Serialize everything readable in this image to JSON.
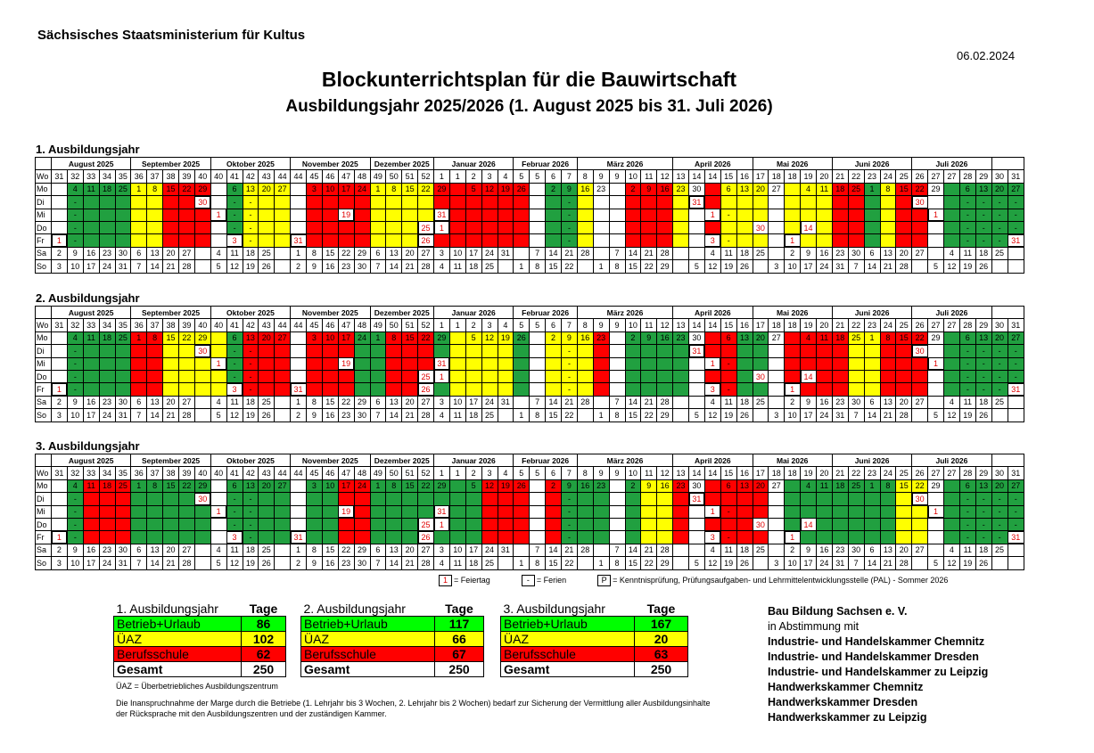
{
  "header": {
    "organization": "Sächsisches Staatsministerium für Kultus",
    "date": "06.02.2024",
    "title": "Blockunterrichtsplan für die Bauwirtschaft",
    "subtitle": "Ausbildungsjahr 2025/2026 (1. August 2025 bis 31. Juli 2026)"
  },
  "colors": {
    "betrieb": "#21a040",
    "uaz": "#ffff00",
    "schule": "#ff0000",
    "feiertag_text": "#e00000"
  },
  "calendar": {
    "row_labels": [
      "Wo",
      "Mo",
      "Di",
      "Mi",
      "Do",
      "Fr",
      "Sa",
      "So"
    ],
    "months": [
      {
        "name": "August 2025",
        "span": 5
      },
      {
        "name": "September 2025",
        "span": 5
      },
      {
        "name": "Oktober 2025",
        "span": 5
      },
      {
        "name": "November 2025",
        "span": 5
      },
      {
        "name": "Dezember 2025",
        "span": 4
      },
      {
        "name": "Januar 2026",
        "span": 5
      },
      {
        "name": "Februar 2026",
        "span": 4
      },
      {
        "name": "März 2026",
        "span": 6
      },
      {
        "name": "April 2026",
        "span": 5
      },
      {
        "name": "Mai 2026",
        "span": 5
      },
      {
        "name": "Juni 2026",
        "span": 5
      },
      {
        "name": "Juli 2026",
        "span": 5
      }
    ],
    "weeks": [
      "31",
      "32",
      "33",
      "34",
      "35",
      "36",
      "37",
      "38",
      "39",
      "40",
      "40",
      "41",
      "42",
      "43",
      "44",
      "44",
      "45",
      "46",
      "47",
      "48",
      "49",
      "50",
      "51",
      "52",
      "1",
      "1",
      "2",
      "3",
      "4",
      "5",
      "5",
      "6",
      "7",
      "8",
      "9",
      "9",
      "10",
      "11",
      "12",
      "13",
      "14",
      "14",
      "15",
      "16",
      "17",
      "18",
      "18",
      "19",
      "20",
      "21",
      "22",
      "23",
      "24",
      "25",
      "26",
      "27",
      "27",
      "28",
      "29",
      "30",
      "31"
    ],
    "mo": [
      "",
      "4",
      "11",
      "18",
      "25",
      "1",
      "8",
      "15",
      "22",
      "29",
      "",
      "6",
      "13",
      "20",
      "27",
      "",
      "3",
      "10",
      "17",
      "24",
      "1",
      "8",
      "15",
      "22",
      "29",
      "",
      "5",
      "12",
      "19",
      "26",
      "",
      "2",
      "9",
      "16",
      "23",
      "",
      "2",
      "9",
      "16",
      "23",
      "30",
      "",
      "6",
      "13",
      "20",
      "27",
      "",
      "4",
      "11",
      "18",
      "25",
      "1",
      "8",
      "15",
      "22",
      "29",
      "",
      "6",
      "13",
      "20",
      "27"
    ],
    "di": [
      "",
      "-",
      "",
      "",
      "",
      "",
      "",
      "",
      "",
      "30",
      "",
      "-",
      "-",
      "",
      "",
      "",
      "",
      "",
      "",
      "",
      "",
      "",
      "",
      "",
      "",
      "",
      "",
      "",
      "",
      "",
      "",
      "",
      "-",
      "",
      "",
      "",
      "",
      "",
      "",
      "",
      "31",
      "",
      "",
      "",
      "",
      "",
      "",
      "",
      "",
      "",
      "",
      "",
      "",
      "",
      "30",
      "",
      "",
      "-",
      "-",
      "-",
      "-"
    ],
    "mi": [
      "",
      "-",
      "",
      "",
      "",
      "",
      "",
      "",
      "",
      "",
      "1",
      "-",
      "-",
      "",
      "",
      "",
      "",
      "",
      "19",
      "",
      "",
      "",
      "",
      "",
      "31",
      "",
      "",
      "",
      "",
      "",
      "",
      "",
      "-",
      "",
      "",
      "",
      "",
      "",
      "",
      "",
      "",
      "1",
      "-",
      "",
      "",
      "",
      "",
      "",
      "",
      "",
      "",
      "",
      "",
      "",
      "",
      "1",
      "",
      "-",
      "-",
      "-",
      "-"
    ],
    "do": [
      "",
      "-",
      "",
      "",
      "",
      "",
      "",
      "",
      "",
      "",
      "",
      "-",
      "-",
      "",
      "",
      "",
      "",
      "",
      "",
      "",
      "",
      "",
      "",
      "25",
      "1",
      "",
      "",
      "",
      "",
      "",
      "",
      "",
      "-",
      "",
      "",
      "",
      "",
      "",
      "",
      "",
      "",
      "",
      "",
      "",
      "30",
      "",
      "",
      "14",
      "",
      "",
      "",
      "",
      "",
      "",
      "",
      "",
      "",
      "-",
      "-",
      "-",
      "-"
    ],
    "fr": [
      "1",
      "-",
      "",
      "",
      "",
      "",
      "",
      "",
      "",
      "",
      "",
      "3",
      "-",
      "",
      "",
      "31",
      "",
      "",
      "",
      "",
      "",
      "",
      "",
      "26",
      "",
      "",
      "",
      "",
      "",
      "",
      "",
      "",
      "-",
      "",
      "",
      "",
      "",
      "",
      "",
      "",
      "",
      "3",
      "-",
      "",
      "",
      "",
      "1",
      "",
      "",
      "",
      "",
      "",
      "",
      "",
      "",
      "",
      "",
      "-",
      "-",
      "-",
      "31"
    ],
    "sa": [
      "2",
      "9",
      "16",
      "23",
      "30",
      "6",
      "13",
      "20",
      "27",
      "",
      "4",
      "11",
      "18",
      "25",
      "",
      "1",
      "8",
      "15",
      "22",
      "29",
      "6",
      "13",
      "20",
      "27",
      "3",
      "10",
      "17",
      "24",
      "31",
      "",
      "7",
      "14",
      "21",
      "28",
      "",
      "7",
      "14",
      "21",
      "28",
      "",
      "",
      "4",
      "11",
      "18",
      "25",
      "",
      "2",
      "9",
      "16",
      "23",
      "30",
      "6",
      "13",
      "20",
      "27",
      "",
      "4",
      "11",
      "18",
      "25",
      ""
    ],
    "so": [
      "3",
      "10",
      "17",
      "24",
      "31",
      "7",
      "14",
      "21",
      "28",
      "",
      "5",
      "12",
      "19",
      "26",
      "",
      "2",
      "9",
      "16",
      "23",
      "30",
      "7",
      "14",
      "21",
      "28",
      "4",
      "11",
      "18",
      "25",
      "",
      "1",
      "8",
      "15",
      "22",
      "",
      "1",
      "8",
      "15",
      "22",
      "29",
      "",
      "5",
      "12",
      "19",
      "26",
      "",
      "3",
      "10",
      "17",
      "24",
      "31",
      "7",
      "14",
      "21",
      "28",
      "",
      "5",
      "12",
      "19",
      "26",
      "",
      ""
    ],
    "years": [
      {
        "label": "1. Ausbildungsjahr",
        "colors": "wgggg yyrrr wgyyy wrrrr yyyyr rrrrr wggyw wrrry wryyy wyyyr rgyrr wgggg"
      },
      {
        "label": "2. Ausbildungsjahr",
        "colors": "wgggg rryyy ygrrr wrrrg grrrg yyyyg wyyyr wgggg wrrgg wrrrr yyrrr wgggg"
      },
      {
        "label": "3. Ausbildungsjahr",
        "colors": "wgrrr ggggg wgggg wggrr ggggg ggrrr wrggg wgyyr wrrrr wgggg gggyy wgggg"
      }
    ]
  },
  "legend": {
    "feiertag_sample": "1",
    "feiertag": "= Feiertag",
    "ferien_sample": "-",
    "ferien": "= Ferien",
    "pal_sample": "P",
    "pal": "= Kenntnisprüfung, Prüfungsaufgaben- und Lehrmittelentwicklungsstelle (PAL) - Sommer 2026"
  },
  "summary": [
    {
      "title": "1. Ausbildungsjahr",
      "tage": "Tage",
      "betrieb_label": "Betrieb+Urlaub",
      "betrieb": "86",
      "uaz_label": "ÜAZ",
      "uaz": "102",
      "schule_label": "Berufsschule",
      "schule": "62",
      "gesamt_label": "Gesamt",
      "gesamt": "250"
    },
    {
      "title": "2. Ausbildungsjahr",
      "tage": "Tage",
      "betrieb_label": "Betrieb+Urlaub",
      "betrieb": "117",
      "uaz_label": "ÜAZ",
      "uaz": "66",
      "schule_label": "Berufsschule",
      "schule": "67",
      "gesamt_label": "Gesamt",
      "gesamt": "250"
    },
    {
      "title": "3. Ausbildungsjahr",
      "tage": "Tage",
      "betrieb_label": "Betrieb+Urlaub",
      "betrieb": "167",
      "uaz_label": "ÜAZ",
      "uaz": "20",
      "schule_label": "Berufsschule",
      "schule": "63",
      "gesamt_label": "Gesamt",
      "gesamt": "250"
    }
  ],
  "notes": {
    "uaz": "ÜAZ = Überbetriebliches Ausbildungszentrum",
    "marge": "Die Inanspruchnahme der Marge durch die Betriebe (1. Lehrjahr bis 3 Wochen, 2. Lehrjahr bis 2 Wochen) bedarf zur Sicherung der Vermittlung aller Ausbildungsinhalte der Rücksprache mit den Ausbildungszentren und der zuständigen Kammer."
  },
  "partners": {
    "org": "Bau Bildung Sachsen e. V.",
    "agreement": "in Abstimmung mit",
    "list": [
      "Industrie- und Handelskammer Chemnitz",
      "Industrie- und Handelskammer Dresden",
      "Industrie- und Handelskammer zu Leipzig",
      "Handwerkskammer Chemnitz",
      "Handwerkskammer Dresden",
      "Handwerkskammer zu Leipzig"
    ]
  }
}
